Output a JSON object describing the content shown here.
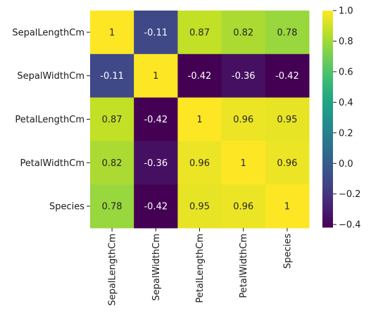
{
  "chart_data": {
    "type": "heatmap",
    "title": "",
    "xlabel": "",
    "ylabel": "",
    "row_labels": [
      "SepalLengthCm",
      "SepalWidthCm",
      "PetalLengthCm",
      "PetalWidthCm",
      "Species"
    ],
    "col_labels": [
      "SepalLengthCm",
      "SepalWidthCm",
      "PetalLengthCm",
      "PetalWidthCm",
      "Species"
    ],
    "values": [
      [
        1,
        -0.11,
        0.87,
        0.82,
        0.78
      ],
      [
        -0.11,
        1,
        -0.42,
        -0.36,
        -0.42
      ],
      [
        0.87,
        -0.42,
        1,
        0.96,
        0.95
      ],
      [
        0.82,
        -0.36,
        0.96,
        1,
        0.96
      ],
      [
        0.78,
        -0.42,
        0.95,
        0.96,
        1
      ]
    ],
    "value_labels": [
      [
        "1",
        "-0.11",
        "0.87",
        "0.82",
        "0.78"
      ],
      [
        "-0.11",
        "1",
        "-0.42",
        "-0.36",
        "-0.42"
      ],
      [
        "0.87",
        "-0.42",
        "1",
        "0.96",
        "0.95"
      ],
      [
        "0.82",
        "-0.36",
        "0.96",
        "1",
        "0.96"
      ],
      [
        "0.78",
        "-0.42",
        "0.95",
        "0.96",
        "1"
      ]
    ],
    "colormap": "viridis",
    "vmin": -0.42,
    "vmax": 1.0,
    "colorbar": {
      "ticks": [
        1.0,
        0.8,
        0.6,
        0.4,
        0.2,
        0.0,
        -0.2,
        -0.4
      ],
      "tick_labels": [
        "1.0",
        "0.8",
        "0.6",
        "0.4",
        "0.2",
        "0.0",
        "−0.2",
        "−0.4"
      ],
      "placement": "right"
    },
    "grid": false,
    "annotations": true
  }
}
